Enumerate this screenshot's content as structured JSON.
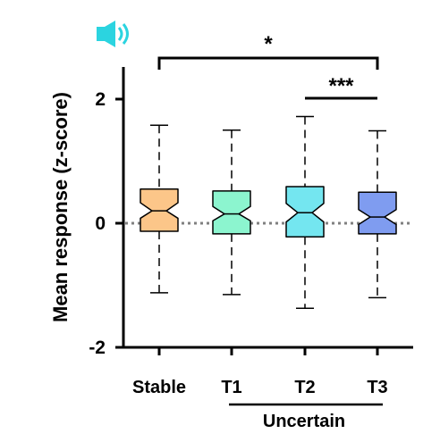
{
  "chart_data": {
    "type": "boxplot",
    "notched": true,
    "ylabel": "Mean response (z-score)",
    "ylim": [
      -2,
      2.8
    ],
    "yticks": [
      -2,
      0,
      2
    ],
    "ytick_labels": [
      "-2",
      "0",
      "2"
    ],
    "reference_line": {
      "y": 0,
      "style": "dotted",
      "color": "#808080"
    },
    "categories": [
      "Stable",
      "T1",
      "T2",
      "T3"
    ],
    "group": {
      "label": "Uncertain",
      "members": [
        "T1",
        "T2",
        "T3"
      ]
    },
    "boxes": [
      {
        "name": "Stable",
        "color": "#FCC689",
        "whisker_low": -1.12,
        "q1": -0.13,
        "median": 0.2,
        "q3": 0.55,
        "whisker_high": 1.58,
        "notch_low": 0.08,
        "notch_high": 0.33
      },
      {
        "name": "T1",
        "color": "#8CF5CF",
        "whisker_low": -1.15,
        "q1": -0.17,
        "median": 0.15,
        "q3": 0.52,
        "whisker_high": 1.5,
        "notch_low": 0.04,
        "notch_high": 0.27
      },
      {
        "name": "T2",
        "color": "#74E6F0",
        "whisker_low": -1.37,
        "q1": -0.22,
        "median": 0.17,
        "q3": 0.59,
        "whisker_high": 1.72,
        "notch_low": 0.02,
        "notch_high": 0.32
      },
      {
        "name": "T3",
        "color": "#7F9CF0",
        "whisker_low": -1.2,
        "q1": -0.17,
        "median": 0.1,
        "q3": 0.5,
        "whisker_high": 1.49,
        "notch_low": -0.02,
        "notch_high": 0.22
      }
    ],
    "significance": [
      {
        "from": "Stable",
        "to": "T3",
        "label": "*"
      },
      {
        "from": "T2",
        "to": "T3",
        "label": "***"
      }
    ],
    "icon": {
      "name": "speaker-sound-icon",
      "color": "#2BD4E0"
    }
  }
}
